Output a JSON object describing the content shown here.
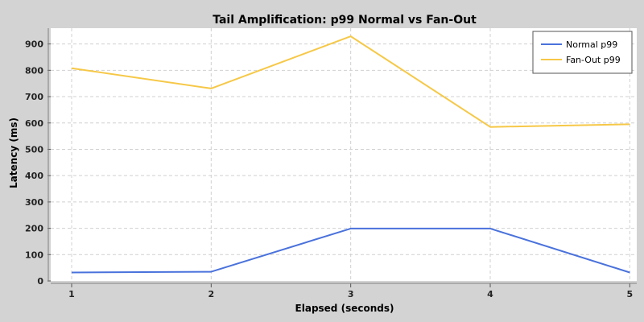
{
  "chart_data": {
    "type": "line",
    "title": "Tail Amplification: p99 Normal vs Fan-Out",
    "xlabel": "Elapsed (seconds)",
    "ylabel": "Latency (ms)",
    "x": [
      1,
      2,
      3,
      4,
      5
    ],
    "xlim": [
      0.85,
      5.05
    ],
    "ylim": [
      0,
      960
    ],
    "yticks": [
      0,
      100,
      200,
      300,
      400,
      500,
      600,
      700,
      800,
      900
    ],
    "xticks": [
      1,
      2,
      3,
      4,
      5
    ],
    "grid": true,
    "legend_position": "top-right",
    "series": [
      {
        "name": "Normal p99",
        "color": "#4a72dc",
        "values": [
          32,
          35,
          199,
          199,
          32
        ]
      },
      {
        "name": "Fan-Out p99",
        "color": "#f6c847",
        "values": [
          808,
          731,
          929,
          585,
          595
        ]
      }
    ]
  }
}
